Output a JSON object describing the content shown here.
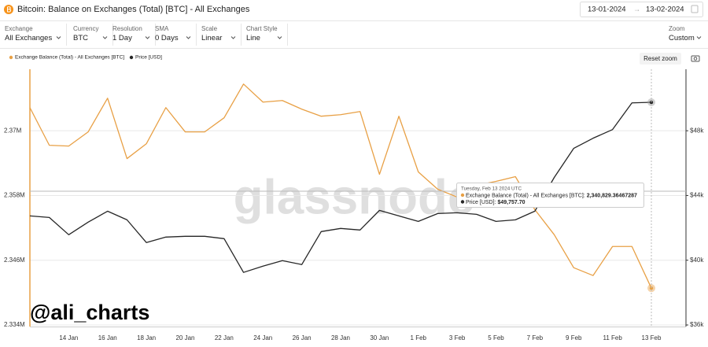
{
  "header": {
    "title": "Bitcoin: Balance on Exchanges (Total) [BTC] - All Exchanges",
    "date_from": "13-01-2024",
    "date_separator": "→",
    "date_to": "13-02-2024"
  },
  "controls": [
    {
      "label": "Exchange",
      "value": "All Exchanges"
    },
    {
      "label": "Currency",
      "value": "BTC"
    },
    {
      "label": "Resolution",
      "value": "1 Day"
    },
    {
      "label": "SMA",
      "value": "0 Days"
    },
    {
      "label": "Scale",
      "value": "Linear"
    },
    {
      "label": "Chart Style",
      "value": "Line"
    },
    {
      "label": "Zoom",
      "value": "Custom"
    }
  ],
  "reset_zoom": "Reset zoom",
  "watermark": "glassnode",
  "signature": "@ali_charts",
  "tooltip": {
    "date": "Tuesday, Feb 13 2024 UTC",
    "items": [
      {
        "label": "Exchange Balance (Total) - All Exchanges [BTC]: ",
        "value": "2,340,829.36467287"
      },
      {
        "label": "Price [USD]: ",
        "value": "$49,757.70"
      }
    ]
  },
  "chart_data": {
    "type": "line",
    "categories": [
      null,
      null,
      "14 Jan",
      null,
      "16 Jan",
      null,
      "18 Jan",
      null,
      "20 Jan",
      null,
      "22 Jan",
      null,
      "24 Jan",
      null,
      "26 Jan",
      null,
      "28 Jan",
      null,
      "30 Jan",
      null,
      "1 Feb",
      null,
      "3 Feb",
      null,
      "5 Feb",
      null,
      "7 Feb",
      null,
      "9 Feb",
      null,
      "11 Feb",
      null,
      "13 Feb"
    ],
    "series": [
      {
        "name": "Exchange Balance (Total) - All Exchanges [BTC]",
        "color": "#e8a045",
        "axis": "y",
        "values": [
          2374290,
          2367309,
          2367164,
          2369782,
          2376036,
          2364836,
          2367600,
          2374290,
          2369782,
          2369782,
          2372400,
          2378654,
          2375309,
          2375600,
          2374000,
          2372691,
          2372982,
          2373563,
          2361927,
          2372691,
          2362364,
          2359164,
          2357709,
          2359891,
          2360618,
          2361491,
          2355382,
          2350727,
          2344618,
          2343164,
          2348545,
          2348545,
          2340829.36467287
        ]
      },
      {
        "name": "Price [USD]",
        "color": "#262626",
        "axis": "y2",
        "values": [
          42739,
          42642,
          41576,
          42352,
          43030,
          42497,
          41091,
          41430,
          41479,
          41479,
          41333,
          39248,
          39636,
          39976,
          39733,
          41770,
          41964,
          41867,
          43079,
          42739,
          42400,
          42885,
          42933,
          42836,
          42400,
          42497,
          43030,
          45115,
          46909,
          47539,
          48073,
          49721,
          49757.7
        ]
      }
    ],
    "ylim": [
      2334000,
      2381400
    ],
    "yticks": [
      {
        "value": 2334000,
        "label": "2.334M"
      },
      {
        "value": 2346000,
        "label": "2.346M"
      },
      {
        "value": 2358000,
        "label": "2.358M"
      },
      {
        "value": 2370000,
        "label": "2.37M"
      }
    ],
    "y2lim": [
      36000,
      51800
    ],
    "y2ticks": [
      {
        "value": 36000,
        "label": "$36k"
      },
      {
        "value": 40000,
        "label": "$40k"
      },
      {
        "value": 44000,
        "label": "$44k"
      },
      {
        "value": 48000,
        "label": "$48k"
      }
    ],
    "grid": true
  }
}
